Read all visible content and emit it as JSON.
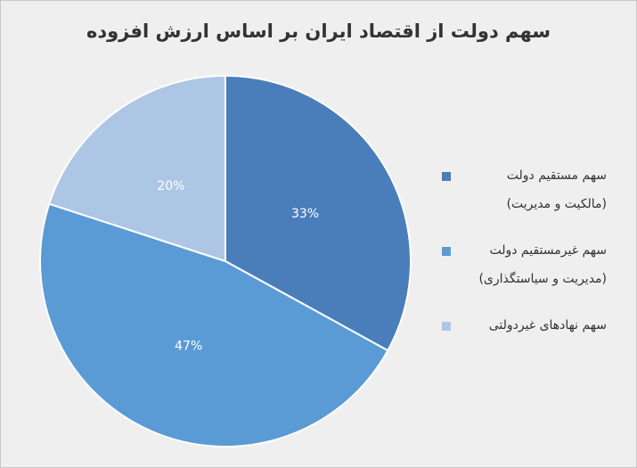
{
  "chart_data": {
    "type": "pie",
    "title": "سهم دولت از اقتصاد ایران بر اساس ارزش افزوده",
    "categories": [
      "سهم مستقیم دولت\n(مالکیت و مدیریت)",
      "سهم غیرمستقیم دولت\n(مدیریت و سیاستگذاری)",
      "سهم نهادهای غیردولتی"
    ],
    "values": [
      33,
      47,
      20
    ],
    "value_labels": [
      "33%",
      "47%",
      "20%"
    ],
    "colors": [
      "#4a7ebb",
      "#5b9bd5",
      "#adc6e5"
    ],
    "legend": "right"
  }
}
